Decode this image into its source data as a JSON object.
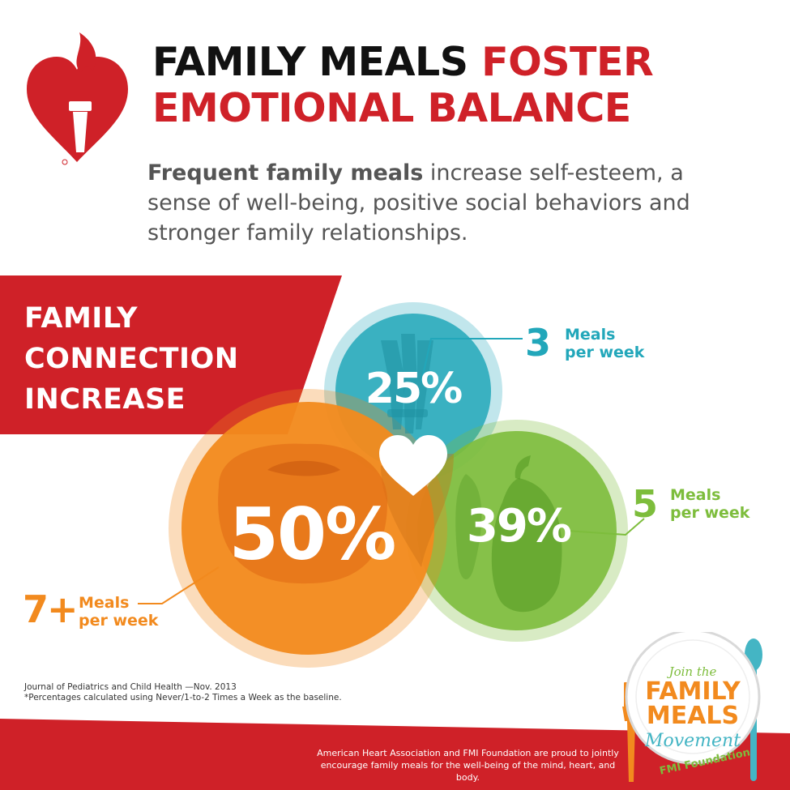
{
  "header": {
    "title_black": "FAMILY MEALS",
    "title_red_1": "FOSTER",
    "title_red_2": "EMOTIONAL BALANCE",
    "subtitle_bold": "Frequent family meals",
    "subtitle_rest": " increase self-esteem, a sense of well-being, positive social behaviors and stronger family relationships."
  },
  "banner": {
    "line1": "FAMILY",
    "line2": "CONNECTION",
    "line3": "INCREASE"
  },
  "stats": [
    {
      "percent": "25%",
      "meals": "3",
      "line1": "Meals",
      "line2": "per week",
      "color": "#22a7ba"
    },
    {
      "percent": "39%",
      "meals": "5",
      "line1": "Meals",
      "line2": "per week",
      "color": "#7dbd3c"
    },
    {
      "percent": "50%",
      "meals": "7+",
      "line1": "Meals",
      "line2": "per week",
      "color": "#f28a1e"
    }
  ],
  "citation": {
    "line1": "Journal of Pediatrics and Child Health —Nov. 2013",
    "line2": "*Percentages calculated using Never/1-to-2 Times a Week as the baseline."
  },
  "footer": {
    "line1": "American Heart Association and FMI Foundation are proud to jointly",
    "line2": "encourage family meals for the well-being of the mind, heart, and body."
  },
  "badge": {
    "join": "Join the",
    "family": "FAMILY",
    "meals": "MEALS",
    "movement": "Movement",
    "org": "FMI Foundation"
  },
  "colors": {
    "red": "#cf2128",
    "orange": "#f28a1e",
    "green": "#7dbd3c",
    "teal": "#22a7ba"
  },
  "icons": [
    "aha-heart-torch-logo",
    "heart-icon",
    "asparagus-icon",
    "tomato-icon",
    "pepper-icon",
    "fork-icon",
    "spoon-icon"
  ]
}
